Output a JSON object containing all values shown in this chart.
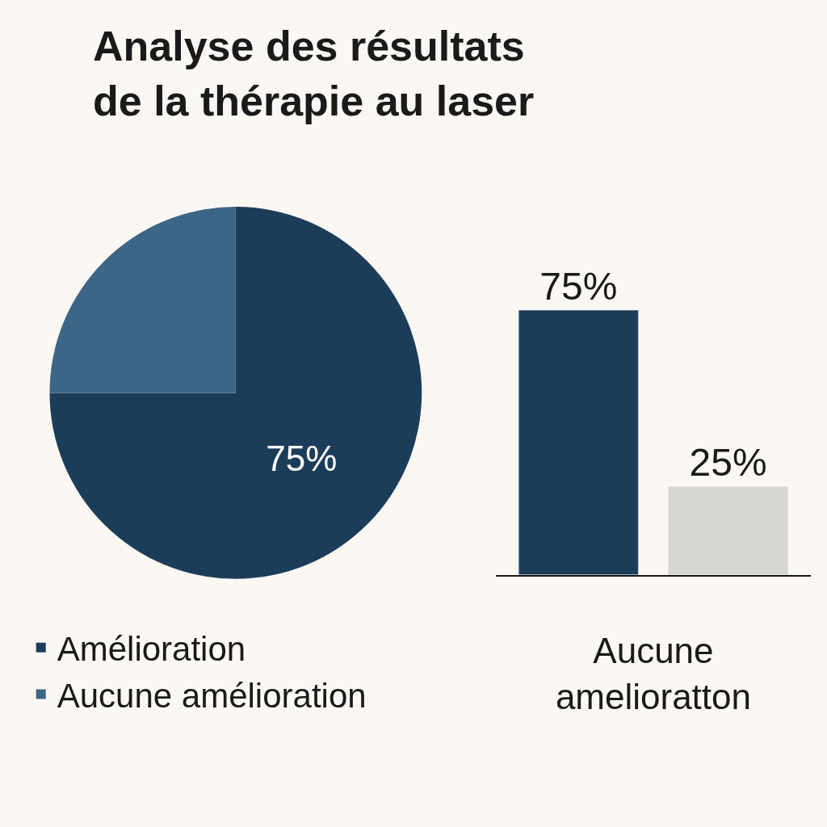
{
  "chart_data": [
    {
      "type": "pie",
      "title": "Analyse des résultats\nde la thérapie au laser",
      "categories": [
        "Amélioration",
        "Aucune amélioration"
      ],
      "values": [
        75,
        25
      ],
      "colors": [
        "#1c3d5a",
        "#3d6585"
      ],
      "value_labels": [
        "75%",
        null
      ],
      "legend": "bottom left"
    },
    {
      "type": "bar",
      "categories": [
        null,
        null
      ],
      "xlabel": "Aucune\namelioratton",
      "value_labels": [
        "75%",
        "25%"
      ],
      "values": [
        75,
        25
      ],
      "colors": [
        "#1c3d5a",
        "#d6d6d0"
      ]
    }
  ]
}
